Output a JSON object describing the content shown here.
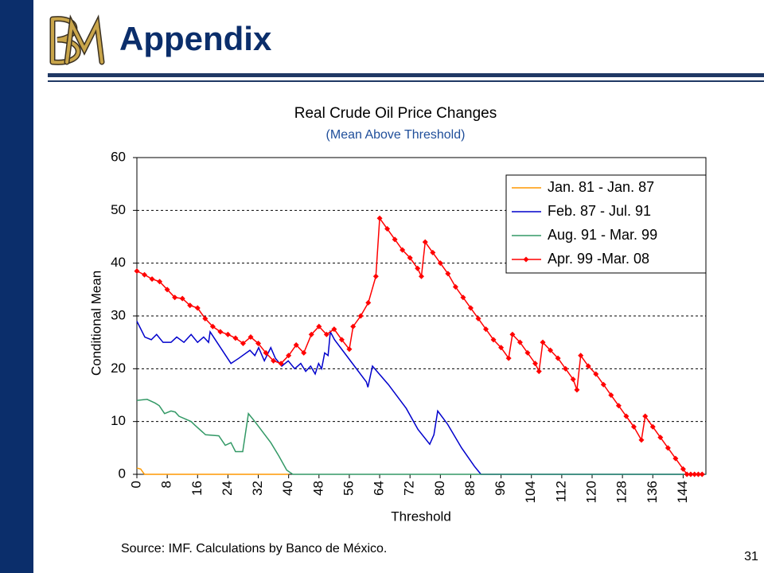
{
  "slide": {
    "title": "Appendix",
    "source": "Source: IMF. Calculations by Banco de México.",
    "page_number": "31"
  },
  "chart_data": {
    "type": "line",
    "title": "Real Crude Oil Price Changes",
    "subtitle": "(Mean Above Threshold)",
    "x_label": "Threshold",
    "y_label": "Conditional Mean",
    "xlim": [
      0,
      150
    ],
    "xticks": [
      0,
      8,
      16,
      24,
      32,
      40,
      48,
      56,
      64,
      72,
      80,
      88,
      96,
      104,
      112,
      120,
      128,
      136,
      144
    ],
    "ylim": [
      0,
      60
    ],
    "yticks": [
      0,
      10,
      20,
      30,
      40,
      50,
      60
    ],
    "grid": true,
    "legend": "upper right",
    "series": [
      {
        "name": "Jan. 81 - Jan. 87",
        "color": "#ff9900",
        "x": [
          0,
          1,
          2,
          40
        ],
        "values": [
          1.2,
          1,
          0,
          0
        ]
      },
      {
        "name": "Feb. 87 - Jul. 91",
        "color": "#0000cc",
        "x": [
          0,
          2.1,
          3.8,
          5.2,
          6.9,
          9,
          10.5,
          12.4,
          14.3,
          16,
          17.6,
          18.9,
          19.3,
          24.8,
          26.9,
          29.8,
          31.1,
          32.1,
          33.6,
          35.3,
          36.5,
          38.2,
          39.9,
          41.6,
          43.2,
          44.5,
          45.8,
          47,
          47.9,
          48.7,
          49.5,
          50.4,
          51,
          52.1,
          56.3,
          60.5,
          60.9,
          62.1,
          66.3,
          71,
          74.1,
          77.2,
          78.3,
          79.3,
          81.9,
          85.6,
          89,
          90.7,
          150
        ],
        "values": [
          29,
          26,
          25.5,
          26.5,
          25,
          25,
          26,
          25,
          26.5,
          25,
          26,
          25,
          27,
          21,
          22,
          23.5,
          22.5,
          24,
          21.5,
          24,
          22,
          20.5,
          21.5,
          20,
          21,
          19.5,
          20.5,
          19,
          21,
          20,
          23,
          22.5,
          27,
          25.5,
          21.5,
          17.5,
          16.5,
          20.5,
          17,
          12.5,
          8.5,
          5.7,
          7.5,
          12,
          9.5,
          5,
          1.5,
          0,
          0
        ]
      },
      {
        "name": "Aug. 91 - Mar. 99",
        "color": "#339966",
        "x": [
          0,
          2.7,
          4.8,
          5.9,
          7.3,
          9,
          10.1,
          11.1,
          14.3,
          15.3,
          18.1,
          21.6,
          23.3,
          24.8,
          26,
          27.9,
          29.4,
          31.1,
          35.3,
          37.4,
          39.5,
          41.1,
          150
        ],
        "values": [
          14,
          14.2,
          13.5,
          13,
          11.5,
          12,
          11.8,
          11,
          10,
          9.3,
          7.5,
          7.3,
          5.5,
          6,
          4.3,
          4.3,
          11.5,
          10,
          6,
          3.5,
          0.8,
          0,
          0
        ]
      },
      {
        "name": "Apr. 99 -Mar. 08",
        "color": "#ff0000",
        "marker": "diamond",
        "x": [
          0,
          2,
          4,
          6,
          8,
          10,
          12,
          14,
          16,
          18,
          20,
          22,
          24,
          26,
          28,
          30,
          32,
          34,
          36,
          38,
          40,
          42,
          44,
          46,
          48,
          50,
          52,
          54,
          56,
          57,
          59,
          61,
          63,
          64,
          66,
          68,
          70,
          72,
          74,
          75,
          76,
          78,
          80,
          82,
          84,
          86,
          88,
          90,
          92,
          94,
          96,
          98,
          99,
          101,
          103,
          105,
          106,
          107,
          109,
          111,
          113,
          115,
          116,
          117,
          119,
          121,
          123,
          125,
          127,
          129,
          131,
          133,
          134,
          136,
          138,
          140,
          142,
          144,
          145,
          146,
          147,
          148,
          149
        ],
        "values": [
          38.5,
          37.8,
          37,
          36.5,
          35,
          33.5,
          33.3,
          32,
          31.5,
          29.5,
          28,
          27,
          26.5,
          25.8,
          24.8,
          26,
          24.8,
          23,
          21.5,
          21,
          22.5,
          24.5,
          23,
          26.5,
          28,
          26.5,
          27.5,
          25.5,
          23.7,
          28,
          30,
          32.5,
          37.5,
          48.5,
          46.5,
          44.5,
          42.5,
          41,
          39,
          37.5,
          44,
          42,
          40,
          38,
          35.5,
          33.5,
          31.5,
          29.5,
          27.5,
          25.5,
          24,
          22,
          26.5,
          25,
          23,
          21,
          19.5,
          25,
          23.5,
          22,
          20,
          18,
          16,
          22.5,
          20.5,
          19,
          17,
          15,
          13,
          11,
          9,
          6.5,
          11,
          9,
          7,
          5,
          3,
          1,
          0,
          0,
          0,
          0,
          0
        ]
      }
    ]
  }
}
